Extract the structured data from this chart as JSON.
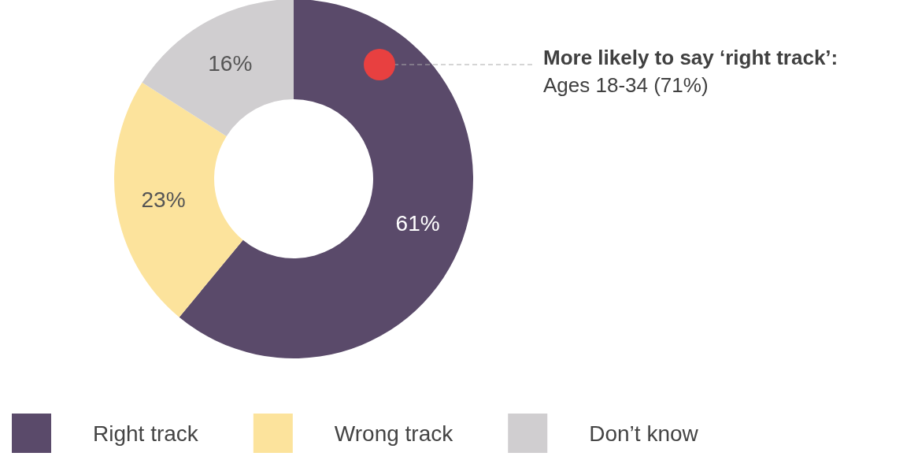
{
  "chart_data": {
    "type": "donut",
    "categories": [
      "Right track",
      "Wrong track",
      "Don’t know"
    ],
    "values": [
      61,
      23,
      16
    ],
    "colors": [
      "#5a4a6a",
      "#fce39c",
      "#d0ced0"
    ],
    "value_labels": [
      "61%",
      "23%",
      "16%"
    ],
    "legend": "bottom",
    "annotations": [
      "More likely to say ‘right track’:",
      "Ages 18-34 (71%)"
    ]
  }
}
